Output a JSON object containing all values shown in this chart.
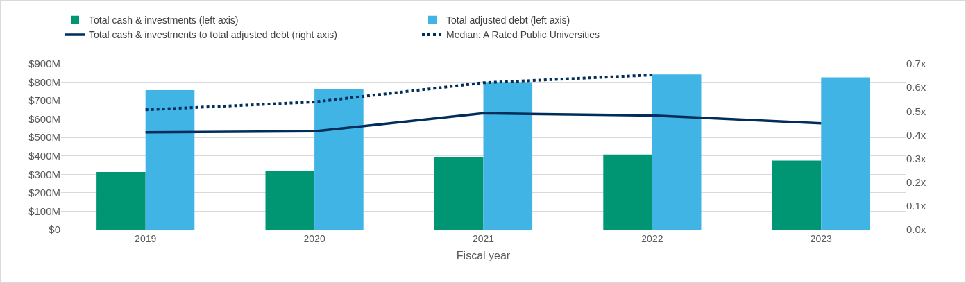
{
  "chart_data": {
    "type": "bar",
    "xlabel": "Fiscal year",
    "categories": [
      "2019",
      "2020",
      "2021",
      "2022",
      "2023"
    ],
    "series": [
      {
        "name": "Total cash & investments (left axis)",
        "color": "#009673",
        "values": [
          313,
          319,
          393,
          408,
          375
        ]
      },
      {
        "name": "Total adjusted debt (left axis)",
        "color": "#41b4e6",
        "values": [
          757,
          763,
          800,
          843,
          827
        ]
      },
      {
        "name": "Total cash & investments to total adjusted debt (right axis)",
        "type": "line",
        "axis": "y2",
        "color": "#002d5a",
        "line_style": "solid",
        "values": [
          0.411,
          0.415,
          0.491,
          0.482,
          0.449
        ]
      },
      {
        "name": "Median: A Rated Public Universities",
        "type": "line",
        "axis": "y2",
        "color": "#002d5a",
        "line_style": "dotted",
        "values": [
          0.506,
          0.539,
          0.62,
          0.653,
          null
        ]
      }
    ],
    "ylim": [
      0,
      900
    ],
    "yticks": [
      {
        "value": 0,
        "label": "$0"
      },
      {
        "value": 100,
        "label": "$100M"
      },
      {
        "value": 200,
        "label": "$200M"
      },
      {
        "value": 300,
        "label": "$300M"
      },
      {
        "value": 400,
        "label": "$400M"
      },
      {
        "value": 500,
        "label": "$500M"
      },
      {
        "value": 600,
        "label": "$600M"
      },
      {
        "value": 700,
        "label": "$700M"
      },
      {
        "value": 800,
        "label": "$800M"
      },
      {
        "value": 900,
        "label": "$900M"
      }
    ],
    "y2lim": [
      0,
      0.7
    ],
    "y2ticks": [
      {
        "value": 0,
        "label": "0.0x"
      },
      {
        "value": 0.1,
        "label": "0.1x"
      },
      {
        "value": 0.2,
        "label": "0.2x"
      },
      {
        "value": 0.3,
        "label": "0.3x"
      },
      {
        "value": 0.4,
        "label": "0.4x"
      },
      {
        "value": 0.5,
        "label": "0.5x"
      },
      {
        "value": 0.6,
        "label": "0.6x"
      },
      {
        "value": 0.7,
        "label": "0.7x"
      }
    ],
    "grid": "y",
    "legend": "top"
  }
}
